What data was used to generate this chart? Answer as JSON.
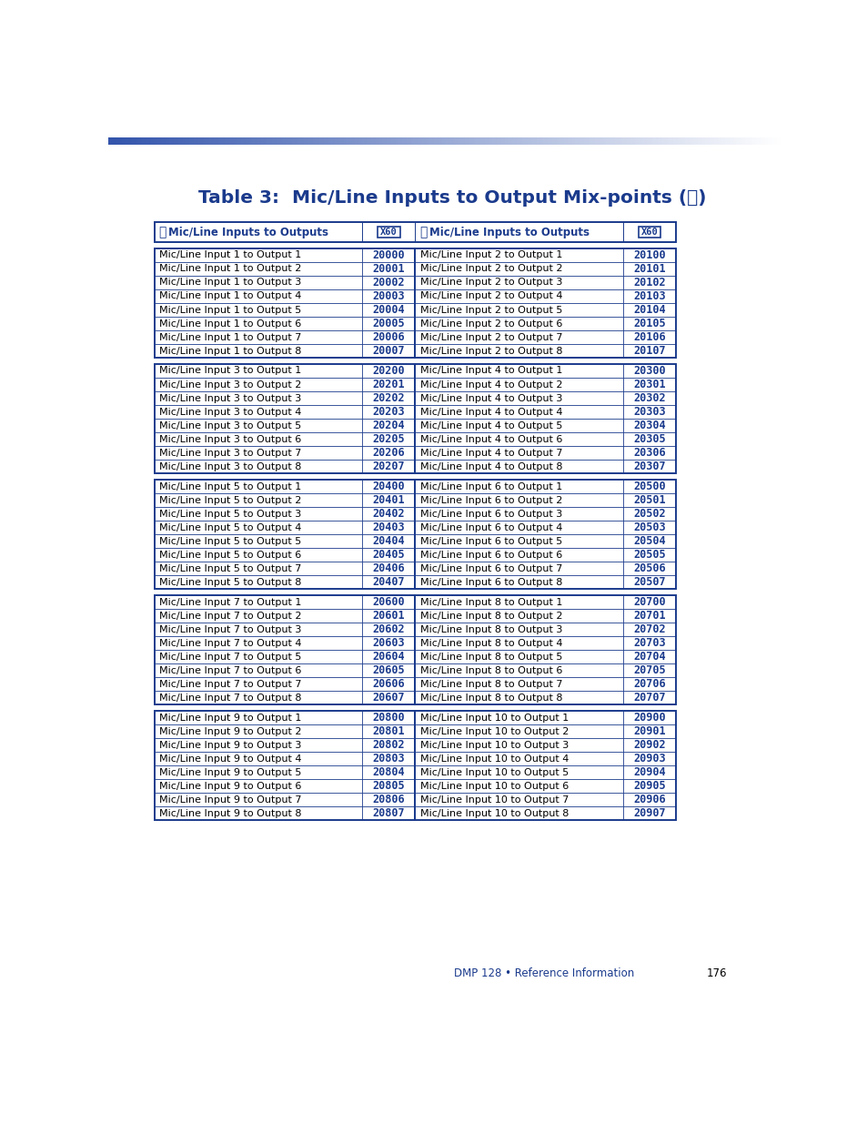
{
  "title": "Table 3:  Mic/Line Inputs to Output Mix-points (ⓘ)",
  "title_color": "#1a3a8c",
  "background_color": "#ffffff",
  "border_color": "#1a3a8c",
  "body_text_color": "#000000",
  "code_text_color": "#1a3a8c",
  "footer_text": "DMP 128 • Reference Information",
  "footer_page": "176",
  "groups": [
    {
      "left": [
        [
          "Mic/Line Input 1 to Output 1",
          "20000"
        ],
        [
          "Mic/Line Input 1 to Output 2",
          "20001"
        ],
        [
          "Mic/Line Input 1 to Output 3",
          "20002"
        ],
        [
          "Mic/Line Input 1 to Output 4",
          "20003"
        ],
        [
          "Mic/Line Input 1 to Output 5",
          "20004"
        ],
        [
          "Mic/Line Input 1 to Output 6",
          "20005"
        ],
        [
          "Mic/Line Input 1 to Output 7",
          "20006"
        ],
        [
          "Mic/Line Input 1 to Output 8",
          "20007"
        ]
      ],
      "right": [
        [
          "Mic/Line Input 2 to Output 1",
          "20100"
        ],
        [
          "Mic/Line Input 2 to Output 2",
          "20101"
        ],
        [
          "Mic/Line Input 2 to Output 3",
          "20102"
        ],
        [
          "Mic/Line Input 2 to Output 4",
          "20103"
        ],
        [
          "Mic/Line Input 2 to Output 5",
          "20104"
        ],
        [
          "Mic/Line Input 2 to Output 6",
          "20105"
        ],
        [
          "Mic/Line Input 2 to Output 7",
          "20106"
        ],
        [
          "Mic/Line Input 2 to Output 8",
          "20107"
        ]
      ]
    },
    {
      "left": [
        [
          "Mic/Line Input 3 to Output 1",
          "20200"
        ],
        [
          "Mic/Line Input 3 to Output 2",
          "20201"
        ],
        [
          "Mic/Line Input 3 to Output 3",
          "20202"
        ],
        [
          "Mic/Line Input 3 to Output 4",
          "20203"
        ],
        [
          "Mic/Line Input 3 to Output 5",
          "20204"
        ],
        [
          "Mic/Line Input 3 to Output 6",
          "20205"
        ],
        [
          "Mic/Line Input 3 to Output 7",
          "20206"
        ],
        [
          "Mic/Line Input 3 to Output 8",
          "20207"
        ]
      ],
      "right": [
        [
          "Mic/Line Input 4 to Output 1",
          "20300"
        ],
        [
          "Mic/Line Input 4 to Output 2",
          "20301"
        ],
        [
          "Mic/Line Input 4 to Output 3",
          "20302"
        ],
        [
          "Mic/Line Input 4 to Output 4",
          "20303"
        ],
        [
          "Mic/Line Input 4 to Output 5",
          "20304"
        ],
        [
          "Mic/Line Input 4 to Output 6",
          "20305"
        ],
        [
          "Mic/Line Input 4 to Output 7",
          "20306"
        ],
        [
          "Mic/Line Input 4 to Output 8",
          "20307"
        ]
      ]
    },
    {
      "left": [
        [
          "Mic/Line Input 5 to Output 1",
          "20400"
        ],
        [
          "Mic/Line Input 5 to Output 2",
          "20401"
        ],
        [
          "Mic/Line Input 5 to Output 3",
          "20402"
        ],
        [
          "Mic/Line Input 5 to Output 4",
          "20403"
        ],
        [
          "Mic/Line Input 5 to Output 5",
          "20404"
        ],
        [
          "Mic/Line Input 5 to Output 6",
          "20405"
        ],
        [
          "Mic/Line Input 5 to Output 7",
          "20406"
        ],
        [
          "Mic/Line Input 5 to Output 8",
          "20407"
        ]
      ],
      "right": [
        [
          "Mic/Line Input 6 to Output 1",
          "20500"
        ],
        [
          "Mic/Line Input 6 to Output 2",
          "20501"
        ],
        [
          "Mic/Line Input 6 to Output 3",
          "20502"
        ],
        [
          "Mic/Line Input 6 to Output 4",
          "20503"
        ],
        [
          "Mic/Line Input 6 to Output 5",
          "20504"
        ],
        [
          "Mic/Line Input 6 to Output 6",
          "20505"
        ],
        [
          "Mic/Line Input 6 to Output 7",
          "20506"
        ],
        [
          "Mic/Line Input 6 to Output 8",
          "20507"
        ]
      ]
    },
    {
      "left": [
        [
          "Mic/Line Input 7 to Output 1",
          "20600"
        ],
        [
          "Mic/Line Input 7 to Output 2",
          "20601"
        ],
        [
          "Mic/Line Input 7 to Output 3",
          "20602"
        ],
        [
          "Mic/Line Input 7 to Output 4",
          "20603"
        ],
        [
          "Mic/Line Input 7 to Output 5",
          "20604"
        ],
        [
          "Mic/Line Input 7 to Output 6",
          "20605"
        ],
        [
          "Mic/Line Input 7 to Output 7",
          "20606"
        ],
        [
          "Mic/Line Input 7 to Output 8",
          "20607"
        ]
      ],
      "right": [
        [
          "Mic/Line Input 8 to Output 1",
          "20700"
        ],
        [
          "Mic/Line Input 8 to Output 2",
          "20701"
        ],
        [
          "Mic/Line Input 8 to Output 3",
          "20702"
        ],
        [
          "Mic/Line Input 8 to Output 4",
          "20703"
        ],
        [
          "Mic/Line Input 8 to Output 5",
          "20704"
        ],
        [
          "Mic/Line Input 8 to Output 6",
          "20705"
        ],
        [
          "Mic/Line Input 8 to Output 7",
          "20706"
        ],
        [
          "Mic/Line Input 8 to Output 8",
          "20707"
        ]
      ]
    },
    {
      "left": [
        [
          "Mic/Line Input 9 to Output 1",
          "20800"
        ],
        [
          "Mic/Line Input 9 to Output 2",
          "20801"
        ],
        [
          "Mic/Line Input 9 to Output 3",
          "20802"
        ],
        [
          "Mic/Line Input 9 to Output 4",
          "20803"
        ],
        [
          "Mic/Line Input 9 to Output 5",
          "20804"
        ],
        [
          "Mic/Line Input 9 to Output 6",
          "20805"
        ],
        [
          "Mic/Line Input 9 to Output 7",
          "20806"
        ],
        [
          "Mic/Line Input 9 to Output 8",
          "20807"
        ]
      ],
      "right": [
        [
          "Mic/Line Input 10 to Output 1",
          "20900"
        ],
        [
          "Mic/Line Input 10 to Output 2",
          "20901"
        ],
        [
          "Mic/Line Input 10 to Output 3",
          "20902"
        ],
        [
          "Mic/Line Input 10 to Output 4",
          "20903"
        ],
        [
          "Mic/Line Input 10 to Output 5",
          "20904"
        ],
        [
          "Mic/Line Input 10 to Output 6",
          "20905"
        ],
        [
          "Mic/Line Input 10 to Output 7",
          "20906"
        ],
        [
          "Mic/Line Input 10 to Output 8",
          "20907"
        ]
      ]
    }
  ]
}
